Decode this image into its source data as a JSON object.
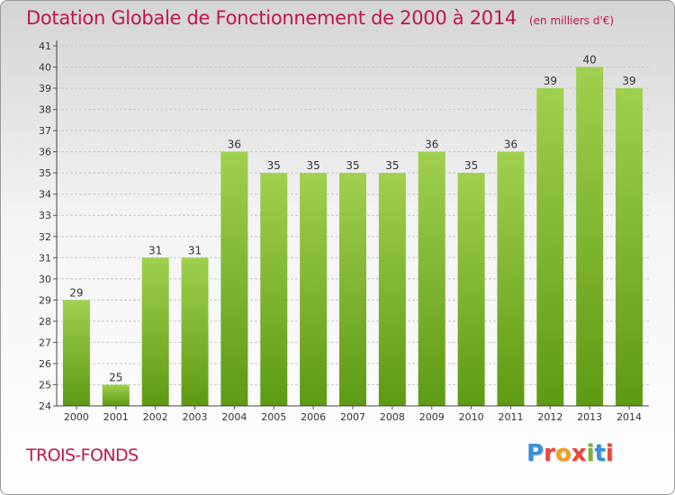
{
  "header": {
    "title": "Dotation Globale de Fonctionnement de 2000 à 2014",
    "subtitle": "(en milliers d'€)"
  },
  "footer": {
    "commune": "TROIS-FONDS",
    "brand": "Proxiti",
    "brand_colors": [
      "#3a8fd8",
      "#e9473f",
      "#f0a020",
      "#e9473f",
      "#7ab52f",
      "#3a8fd8",
      "#e9473f"
    ]
  },
  "chart_data": {
    "type": "bar",
    "title": "Dotation Globale de Fonctionnement de 2000 à 2014",
    "subtitle": "(en milliers d'€)",
    "categories": [
      "2000",
      "2001",
      "2002",
      "2003",
      "2004",
      "2005",
      "2006",
      "2007",
      "2008",
      "2009",
      "2010",
      "2011",
      "2012",
      "2013",
      "2014"
    ],
    "values": [
      29,
      25,
      31,
      31,
      36,
      35,
      35,
      35,
      35,
      36,
      35,
      36,
      39,
      40,
      39
    ],
    "ylim": [
      24,
      41
    ],
    "yticks": [
      24,
      25,
      26,
      27,
      28,
      29,
      30,
      31,
      32,
      33,
      34,
      35,
      36,
      37,
      38,
      39,
      40,
      41
    ],
    "grid": true,
    "bar_color_top": "#9fd04e",
    "bar_color_bottom": "#5e9a14",
    "grid_color": "#c8c8c8"
  }
}
